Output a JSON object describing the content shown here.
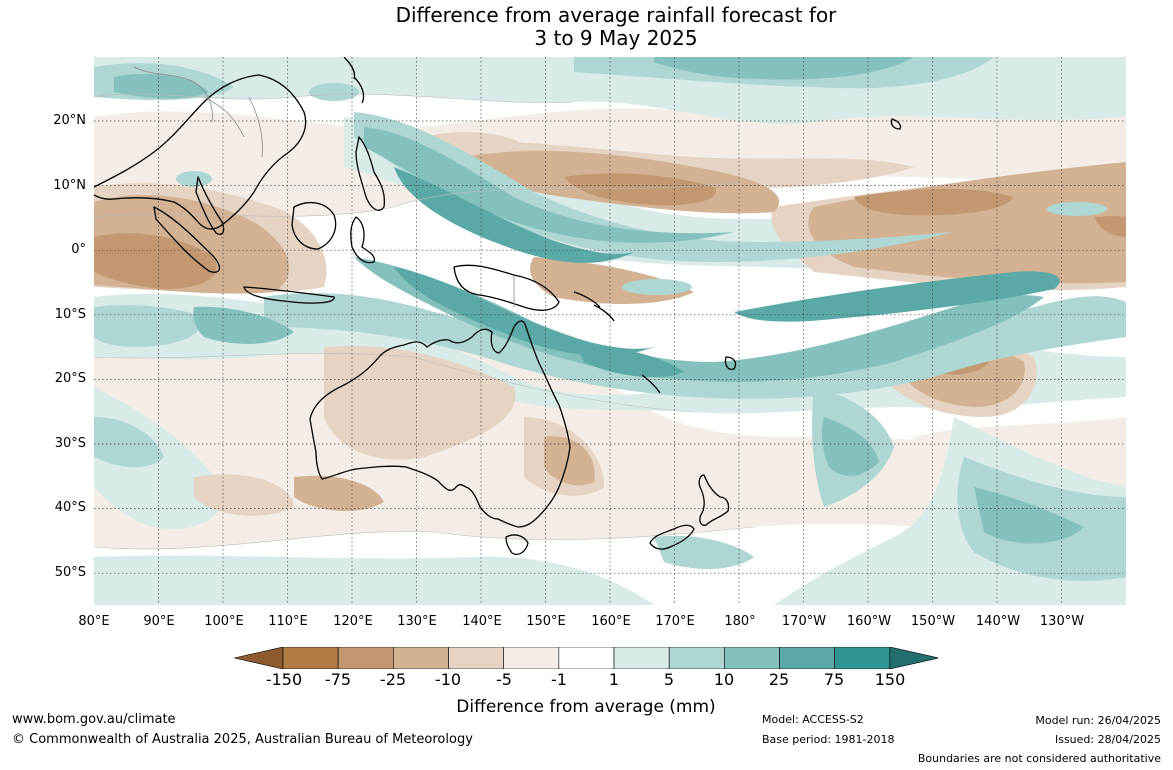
{
  "title": {
    "line1": "Difference from average rainfall forecast for",
    "line2": "3 to 9 May 2025"
  },
  "map": {
    "region": "Australia and western Pacific",
    "lat_labels": [
      "20°N",
      "10°N",
      "0°",
      "10°S",
      "20°S",
      "30°S",
      "40°S",
      "50°S"
    ],
    "lon_labels": [
      "80°E",
      "90°E",
      "100°E",
      "110°E",
      "120°E",
      "130°E",
      "140°E",
      "150°E",
      "160°E",
      "170°E",
      "180°",
      "170°W",
      "160°W",
      "150°W",
      "140°W",
      "130°W"
    ],
    "gridlines": true,
    "gridline_style": "dotted"
  },
  "legend": {
    "title": "Difference from average (mm)",
    "ticks": [
      "-150",
      "-75",
      "-25",
      "-10",
      "-5",
      "-1",
      "1",
      "5",
      "10",
      "25",
      "75",
      "150"
    ],
    "colors": [
      "#8f5a2e",
      "#b07b45",
      "#c39870",
      "#d2b293",
      "#e5d3c3",
      "#f4ede7",
      "#ffffff",
      "#d8ebe9",
      "#aed6d3",
      "#84c1bd",
      "#5aa9a7",
      "#2f9592",
      "#226f6d"
    ],
    "extend": "both"
  },
  "colors": {
    "dry_strong": "#b07b45",
    "dry_moderate": "#c39870",
    "dry_light": "#d2b293",
    "dry_faint": "#e5d3c3",
    "dry_trace": "#f4ede7",
    "neutral": "#ffffff",
    "wet_trace": "#d8ebe9",
    "wet_light": "#aed6d3",
    "wet_moderate": "#84c1bd",
    "wet_strong": "#5aa9a7",
    "coastline": "#000000",
    "borders": "#8a8a8a"
  },
  "footer": {
    "url": "www.bom.gov.au/climate",
    "copyright": "© Commonwealth of Australia 2025, Australian Bureau of Meteorology",
    "model": "Model: ACCESS-S2",
    "base_period": "Base period: 1981-2018",
    "model_run": "Model run: 26/04/2025",
    "issued": "Issued: 28/04/2025",
    "disclaimer": "Boundaries are not considered authoritative"
  }
}
